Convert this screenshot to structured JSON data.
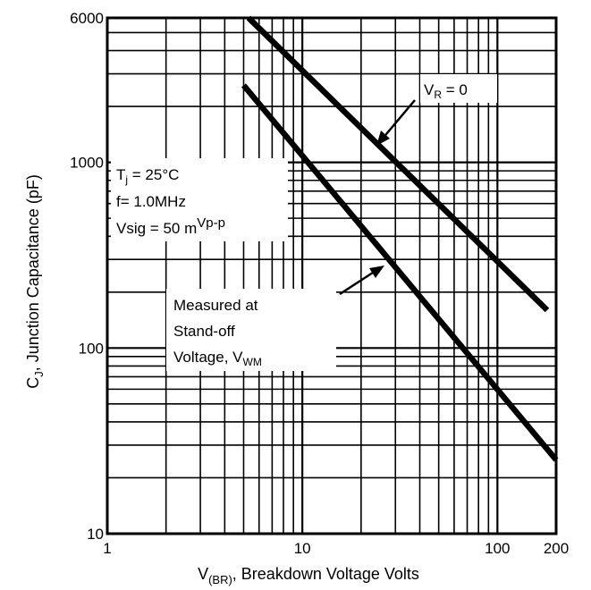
{
  "chart_data": {
    "type": "line",
    "x_scale": "log",
    "y_scale": "log",
    "xlim": [
      1,
      200
    ],
    "ylim": [
      10,
      6000
    ],
    "grid": true,
    "xlabel": {
      "main": "V",
      "sub": "(BR)",
      "rest": ", Breakdown Voltage Volts"
    },
    "ylabel": {
      "main": "C",
      "sub": "J",
      "rest": ", Junction Capacitance (pF)"
    },
    "x_ticks": [
      {
        "value": 1,
        "label": "1"
      },
      {
        "value": 10,
        "label": "10"
      },
      {
        "value": 100,
        "label": "100"
      },
      {
        "value": 200,
        "label": "200"
      }
    ],
    "y_ticks": [
      {
        "value": 10,
        "label": "10"
      },
      {
        "value": 100,
        "label": "100"
      },
      {
        "value": 1000,
        "label": "1000"
      },
      {
        "value": 6000,
        "label": "6000"
      }
    ],
    "series": [
      {
        "name": "VR = 0",
        "x": [
          5.3,
          180
        ],
        "y": [
          6000,
          160
        ]
      },
      {
        "name": "Measured at Stand-off Voltage, VWM",
        "x": [
          5.0,
          200
        ],
        "y": [
          2600,
          25
        ]
      }
    ],
    "annotations": {
      "vr0": {
        "main": "V",
        "sub": "R",
        "rest": " = 0"
      },
      "conditions": {
        "line1": {
          "main": "T",
          "sub": "j",
          "rest": " = 25°C"
        },
        "line2": "f= 1.0MHz",
        "line3": {
          "main": "Vsig = 50 m",
          "sup": "Vp-p"
        }
      },
      "measured": {
        "line1": "Measured at",
        "line2": "Stand-off",
        "line3": {
          "main": "Voltage, V",
          "sub": "WM"
        }
      }
    }
  }
}
